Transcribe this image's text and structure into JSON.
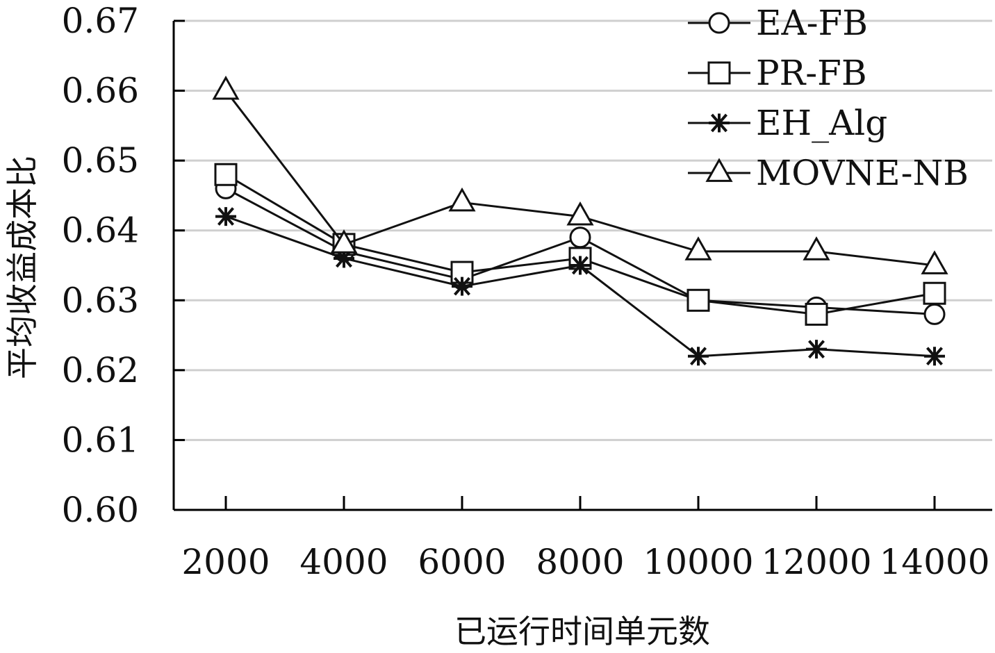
{
  "chart_data": {
    "type": "line",
    "title": "",
    "xlabel": "已运行时间单元数",
    "ylabel": "平均收益成本比",
    "categories": [
      "2000",
      "4000",
      "6000",
      "8000",
      "10000",
      "12000",
      "14000"
    ],
    "y_ticks": [
      "0.60",
      "0.61",
      "0.62",
      "0.63",
      "0.64",
      "0.65",
      "0.66",
      "0.67"
    ],
    "ylim": [
      0.6,
      0.67
    ],
    "grid": "horizontal",
    "legend_position": "top-right",
    "series": [
      {
        "name": "EA-FB",
        "marker": "circle",
        "values": [
          0.646,
          0.637,
          0.633,
          0.639,
          0.63,
          0.629,
          0.628
        ]
      },
      {
        "name": "PR-FB",
        "marker": "square",
        "values": [
          0.648,
          0.638,
          0.634,
          0.636,
          0.63,
          0.628,
          0.631
        ]
      },
      {
        "name": "EH_Alg",
        "marker": "star",
        "values": [
          0.642,
          0.636,
          0.632,
          0.635,
          0.622,
          0.623,
          0.622
        ]
      },
      {
        "name": "MOVNE-NB",
        "marker": "triangle",
        "values": [
          0.66,
          0.638,
          0.644,
          0.642,
          0.637,
          0.637,
          0.635
        ]
      }
    ],
    "colors": {
      "line": "#111111",
      "grid": "#cfcfcf",
      "axis": "#000000"
    }
  }
}
